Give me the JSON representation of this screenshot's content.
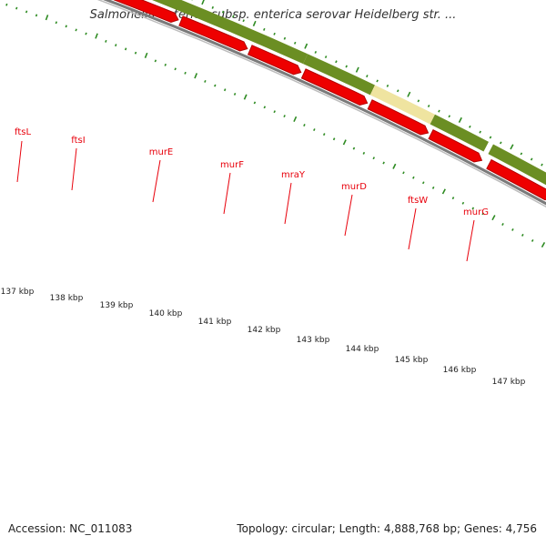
{
  "title": "Salmonella enterica subsp. enterica serovar Heidelberg str. ...",
  "footer": {
    "accession": "Accession: NC_011083",
    "summary": "Topology: circular; Length: 4,888,768 bp; Genes: 4,756"
  },
  "colors": {
    "gene_label": "#e8000b",
    "gene_arrow": "#ee0000",
    "gene_arrow_dark": "#b30000",
    "feature_green": "#6b8e23",
    "feature_yellow": "#efe4a0",
    "ticks": "#2e8b22",
    "backbone": "#7a7a7a",
    "scale_text": "#222222"
  },
  "genes": [
    {
      "name": "ftsL"
    },
    {
      "name": "ftsI"
    },
    {
      "name": "murE"
    },
    {
      "name": "murF"
    },
    {
      "name": "mraY"
    },
    {
      "name": "murD"
    },
    {
      "name": "ftsW"
    },
    {
      "name": "murG"
    }
  ],
  "scale": {
    "labels": [
      "137 kbp",
      "138 kbp",
      "139 kbp",
      "140 kbp",
      "141 kbp",
      "142 kbp",
      "143 kbp",
      "144 kbp",
      "145 kbp",
      "146 kbp",
      "147 kbp"
    ]
  }
}
